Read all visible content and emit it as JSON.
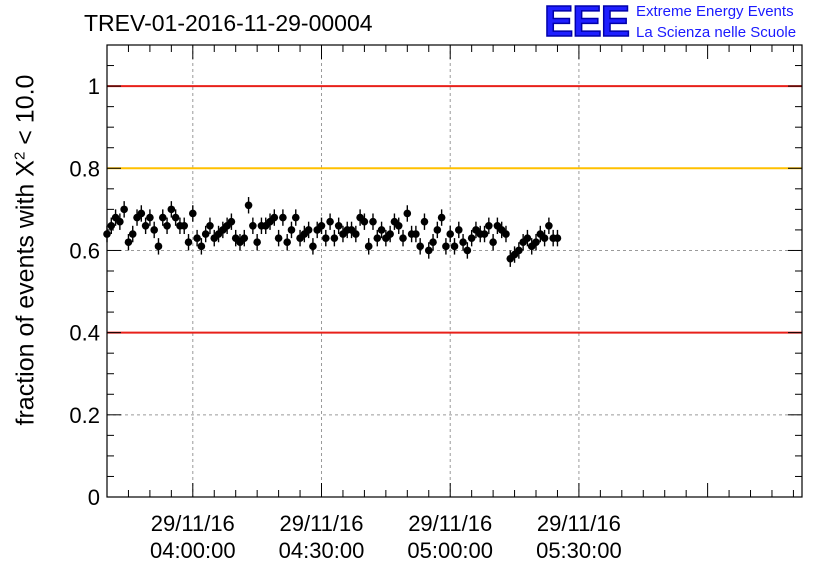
{
  "title": "TREV-01-2016-11-29-00004",
  "logo": {
    "mark": "EEE",
    "line1": "Extreme Energy Events",
    "line2": "La Scienza nelle Scuole"
  },
  "colors": {
    "points": "#000000",
    "limit_lines": "#e8201a",
    "warning_line": "#ffc000",
    "grid": "#9a9a9a",
    "logo": "#1f1fff"
  },
  "chart_data": {
    "type": "scatter",
    "title": "TREV-01-2016-11-29-00004",
    "xlabel": "",
    "ylabel_prefix": "fraction of events with ",
    "ylabel_symbol": "X",
    "ylabel_sup": "2",
    "ylabel_suffix": " < 10.0",
    "ylim": [
      0,
      1.1
    ],
    "y_ticks": [
      0,
      0.2,
      0.4,
      0.6,
      0.8,
      1
    ],
    "y_tick_labels": [
      "0",
      "0.2",
      "0.4",
      "0.6",
      "0.8",
      "1"
    ],
    "x_range_minutes": [
      220,
      382
    ],
    "x_ticks_minutes": [
      240,
      270,
      300,
      330
    ],
    "x_tick_labels": [
      [
        "29/11/16",
        "04:00:00"
      ],
      [
        "29/11/16",
        "04:30:00"
      ],
      [
        "29/11/16",
        "05:00:00"
      ],
      [
        "29/11/16",
        "05:30:00"
      ]
    ],
    "grid": true,
    "reference_lines": [
      {
        "y": 1.0,
        "color": "#e8201a"
      },
      {
        "y": 0.8,
        "color": "#ffc000"
      },
      {
        "y": 0.4,
        "color": "#e8201a"
      }
    ],
    "series": [
      {
        "x_start_minutes": 220,
        "x_step_minutes": 1.0,
        "error": 0.02,
        "y": [
          0.64,
          0.66,
          0.68,
          0.67,
          0.7,
          0.62,
          0.64,
          0.68,
          0.69,
          0.66,
          0.68,
          0.65,
          0.61,
          0.68,
          0.66,
          0.7,
          0.68,
          0.66,
          0.66,
          0.62,
          0.69,
          0.63,
          0.61,
          0.64,
          0.66,
          0.63,
          0.64,
          0.65,
          0.66,
          0.67,
          0.63,
          0.62,
          0.63,
          0.71,
          0.66,
          0.62,
          0.66,
          0.66,
          0.67,
          0.68,
          0.63,
          0.68,
          0.62,
          0.65,
          0.68,
          0.63,
          0.64,
          0.65,
          0.61,
          0.65,
          0.66,
          0.63,
          0.67,
          0.63,
          0.66,
          0.64,
          0.65,
          0.65,
          0.64,
          0.68,
          0.67,
          0.61,
          0.67,
          0.63,
          0.65,
          0.63,
          0.64,
          0.67,
          0.66,
          0.63,
          0.69,
          0.64,
          0.64,
          0.61,
          0.67,
          0.6,
          0.62,
          0.65,
          0.68,
          0.61,
          0.64,
          0.61,
          0.65,
          0.62,
          0.6,
          0.63,
          0.65,
          0.64,
          0.64,
          0.66,
          0.62,
          0.66,
          0.65,
          0.64,
          0.58,
          0.59,
          0.6,
          0.62,
          0.63,
          0.61,
          0.62,
          0.64,
          0.63,
          0.66,
          0.63,
          0.63
        ]
      }
    ]
  }
}
